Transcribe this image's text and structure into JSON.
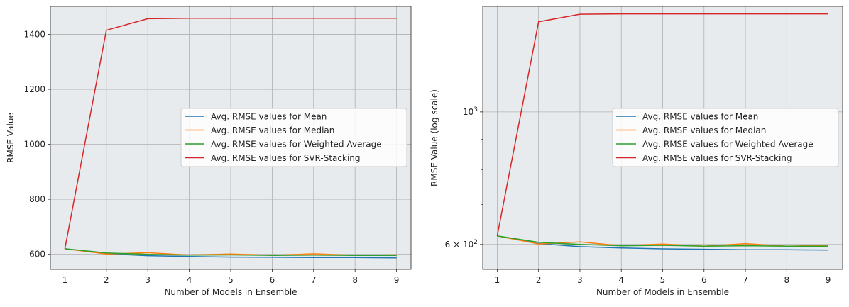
{
  "chart_data": [
    {
      "type": "line",
      "xlabel": "Number of Models in Ensemble",
      "ylabel": "RMSE Value",
      "x": [
        1,
        2,
        3,
        4,
        5,
        6,
        7,
        8,
        9
      ],
      "xlim": [
        0.65,
        9.35
      ],
      "ylim": [
        545,
        1502
      ],
      "yscale": "linear",
      "yticks": [
        600,
        800,
        1000,
        1200,
        1400
      ],
      "ytick_labels": [
        "600",
        "800",
        "1000",
        "1200",
        "1400"
      ],
      "grid": true,
      "legend_position": "center-right",
      "series": [
        {
          "name": "Avg. RMSE values for Mean",
          "color": "#1f77b4",
          "values": [
            620,
            602,
            595,
            592,
            590,
            589,
            588,
            588,
            587
          ]
        },
        {
          "name": "Avg. RMSE values for Median",
          "color": "#ff7f0e",
          "values": [
            620,
            601,
            606,
            597,
            601,
            596,
            602,
            596,
            598
          ]
        },
        {
          "name": "Avg. RMSE values for Weighted Average",
          "color": "#2ca02c",
          "values": [
            620,
            605,
            600,
            597,
            598,
            596,
            597,
            596,
            596
          ]
        },
        {
          "name": "Avg. RMSE values for SVR-Stacking",
          "color": "#d62728",
          "values": [
            620,
            1415,
            1457,
            1459,
            1459,
            1459,
            1459,
            1459,
            1459
          ]
        }
      ]
    },
    {
      "type": "line",
      "xlabel": "Number of Models in Ensemble",
      "ylabel": "RMSE Value (log scale)",
      "x": [
        1,
        2,
        3,
        4,
        5,
        6,
        7,
        8,
        9
      ],
      "xlim": [
        0.65,
        9.35
      ],
      "ylim": [
        545,
        1502
      ],
      "yscale": "log",
      "yticks": [
        600,
        1000
      ],
      "ytick_labels": [
        "6 × 10^2",
        "10^3"
      ],
      "minor_yticks": [
        700,
        800,
        900
      ],
      "grid": true,
      "legend_position": "center-right",
      "series": [
        {
          "name": "Avg. RMSE values for Mean",
          "color": "#1f77b4",
          "values": [
            620,
            602,
            595,
            592,
            590,
            589,
            588,
            588,
            587
          ]
        },
        {
          "name": "Avg. RMSE values for Median",
          "color": "#ff7f0e",
          "values": [
            620,
            601,
            606,
            597,
            601,
            596,
            602,
            596,
            598
          ]
        },
        {
          "name": "Avg. RMSE values for Weighted Average",
          "color": "#2ca02c",
          "values": [
            620,
            605,
            600,
            597,
            598,
            596,
            597,
            596,
            596
          ]
        },
        {
          "name": "Avg. RMSE values for SVR-Stacking",
          "color": "#d62728",
          "values": [
            620,
            1415,
            1457,
            1459,
            1459,
            1459,
            1459,
            1459,
            1459
          ]
        }
      ]
    }
  ]
}
